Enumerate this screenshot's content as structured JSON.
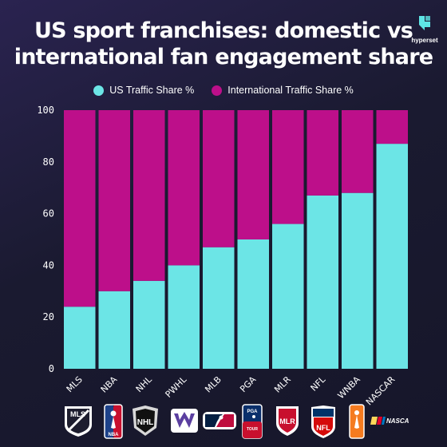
{
  "brand": {
    "name": "hyperset",
    "icon": "hyperset-logo-icon",
    "color": "#5ee5e5"
  },
  "chart_data": {
    "type": "bar",
    "stacked": true,
    "title": "US sport franchises: domestic vs international fan engagement share",
    "xlabel": "",
    "ylabel": "",
    "ylim": [
      0,
      100
    ],
    "yticks": [
      0,
      20,
      40,
      60,
      80,
      100
    ],
    "grid": false,
    "legend_position": "top",
    "categories": [
      "MLS",
      "NBA",
      "NHL",
      "PWHL",
      "MLB",
      "PGA",
      "MLR",
      "NFL",
      "WNBA",
      "NASCAR"
    ],
    "series": [
      {
        "name": "US Traffic Share %",
        "color": "#6ce5e6",
        "values": [
          24,
          30,
          34,
          40,
          47,
          50,
          56,
          67,
          68,
          87
        ]
      },
      {
        "name": "International Traffic Share %",
        "color": "#bd0f8a",
        "values": [
          76,
          70,
          66,
          60,
          53,
          50,
          44,
          33,
          32,
          13
        ]
      }
    ]
  },
  "logos": [
    {
      "league": "MLS",
      "icon": "mls-logo-icon"
    },
    {
      "league": "NBA",
      "icon": "nba-logo-icon"
    },
    {
      "league": "NHL",
      "icon": "nhl-logo-icon"
    },
    {
      "league": "PWHL",
      "icon": "pwhl-logo-icon"
    },
    {
      "league": "MLB",
      "icon": "mlb-logo-icon"
    },
    {
      "league": "PGA",
      "icon": "pga-tour-logo-icon",
      "text": "PGA TOUR"
    },
    {
      "league": "MLR",
      "icon": "mlr-logo-icon",
      "text": "MLR"
    },
    {
      "league": "NFL",
      "icon": "nfl-logo-icon",
      "text": "NFL"
    },
    {
      "league": "WNBA",
      "icon": "wnba-logo-icon"
    },
    {
      "league": "NASCAR",
      "icon": "nascar-logo-icon",
      "text": "NASCAR"
    }
  ]
}
